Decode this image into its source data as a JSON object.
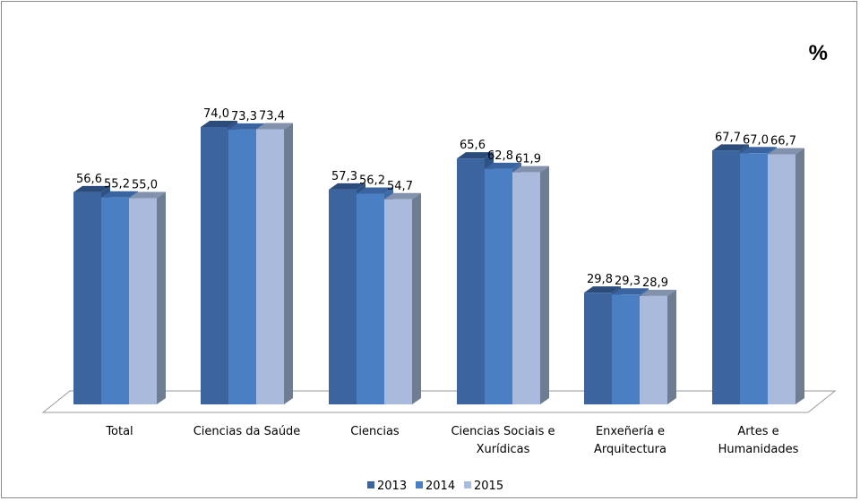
{
  "chart_data": {
    "type": "bar",
    "unit_label": "%",
    "categories": [
      [
        "Total"
      ],
      [
        "Ciencias da Saúde"
      ],
      [
        "Ciencias"
      ],
      [
        "Ciencias Sociais e",
        "Xurídicas"
      ],
      [
        "Enxeñería e",
        "Arquitectura"
      ],
      [
        "Artes e",
        "Humanidades"
      ]
    ],
    "series": [
      {
        "name": "2013",
        "color": "#3c659f",
        "side": "#2f5285",
        "top": "#2b4c7a",
        "values": [
          56.6,
          74.0,
          57.3,
          65.6,
          29.8,
          67.7
        ],
        "labels": [
          "56,6",
          "74,0",
          "57,3",
          "65,6",
          "29,8",
          "67,7"
        ]
      },
      {
        "name": "2014",
        "color": "#4b7fc3",
        "side": "#3e69a3",
        "top": "#3a64a0",
        "values": [
          55.2,
          73.3,
          56.2,
          62.8,
          29.3,
          67.0
        ],
        "labels": [
          "55,2",
          "73,3",
          "56,2",
          "62,8",
          "29,3",
          "67,0"
        ]
      },
      {
        "name": "2015",
        "color": "#a9badc",
        "side": "#6f7d93",
        "top": "#8292ac",
        "values": [
          55.0,
          73.4,
          54.7,
          61.9,
          28.9,
          66.7
        ],
        "labels": [
          "55,0",
          "73,4",
          "54,7",
          "61,9",
          "28,9",
          "66,7"
        ]
      }
    ],
    "ylim": [
      0,
      100
    ],
    "grid": false,
    "legend_position": "bottom"
  }
}
